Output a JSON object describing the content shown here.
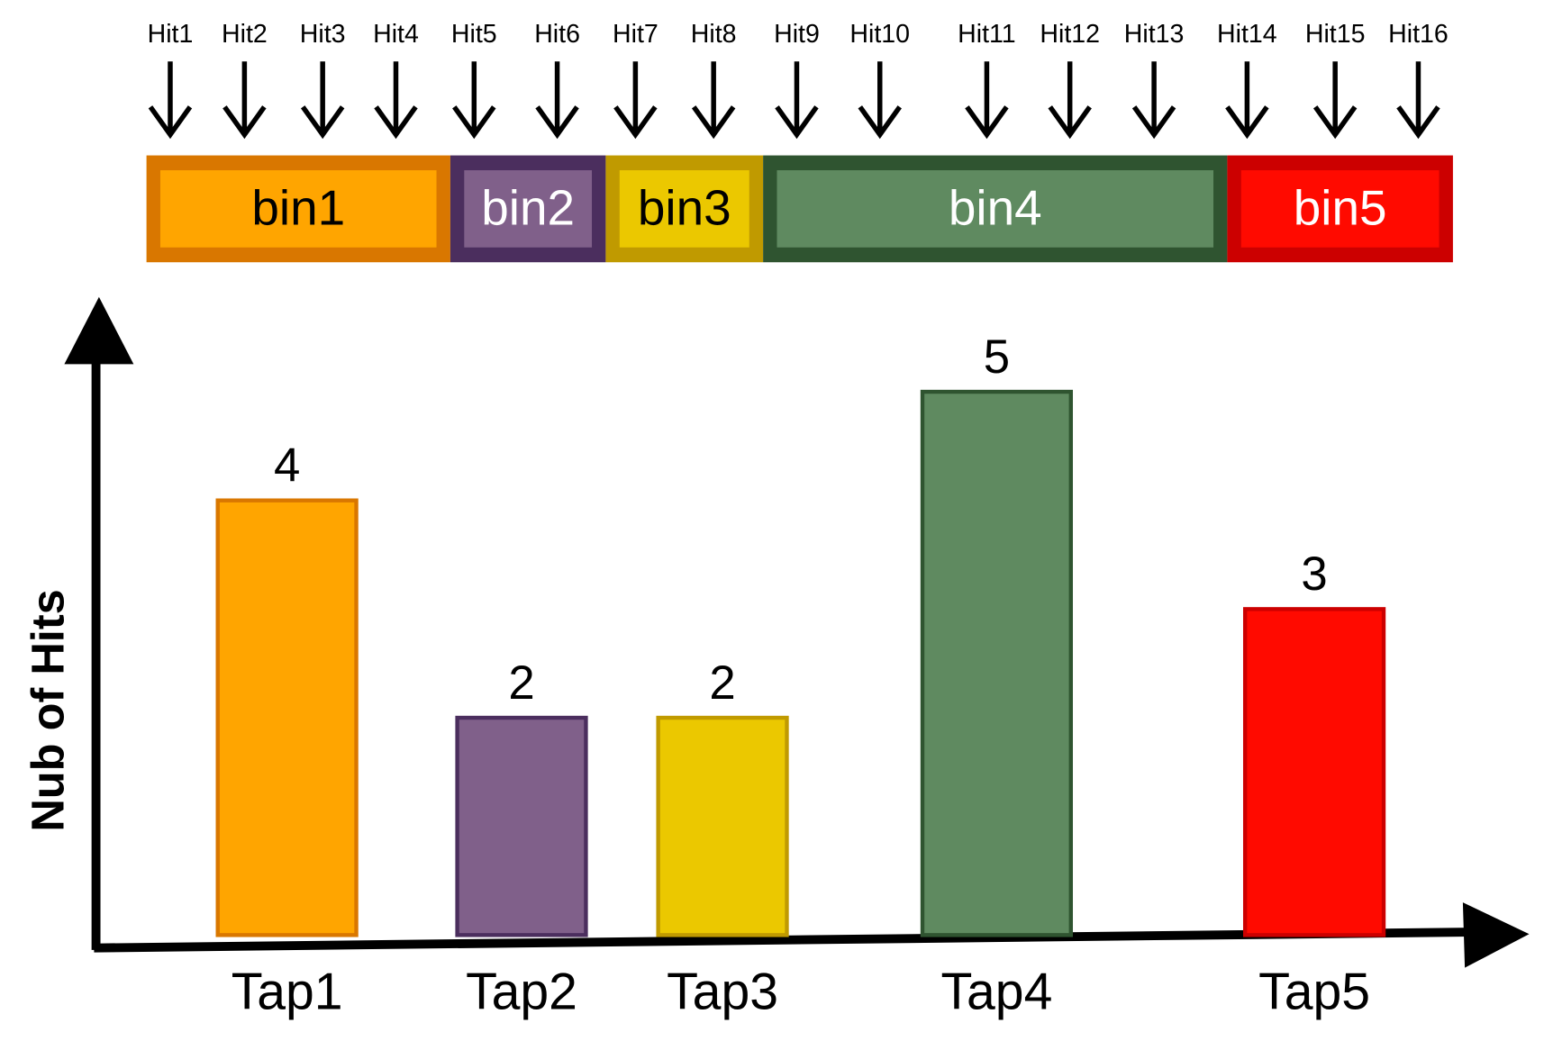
{
  "hits": [
    "Hit1",
    "Hit2",
    "Hit3",
    "Hit4",
    "Hit5",
    "Hit6",
    "Hit7",
    "Hit8",
    "Hit9",
    "Hit10",
    "Hit11",
    "Hit12",
    "Hit13",
    "Hit14",
    "Hit15",
    "Hit16"
  ],
  "bins": [
    "bin1",
    "bin2",
    "bin3",
    "bin4",
    "bin5"
  ],
  "chart_data": {
    "type": "bar",
    "y_label": "Nub of Hits",
    "categories": [
      "Tap1",
      "Tap2",
      "Tap3",
      "Tap4",
      "Tap5"
    ],
    "values": [
      4,
      2,
      2,
      5,
      3
    ],
    "colors": [
      "#ffa500",
      "#80608a",
      "#ebc800",
      "#5f8a60",
      "#ff0a00"
    ],
    "edge_colors": [
      "#d97700",
      "#4b2e5e",
      "#c09a00",
      "#2f5430",
      "#cc0000"
    ],
    "ylim": [
      0,
      5.6
    ]
  }
}
